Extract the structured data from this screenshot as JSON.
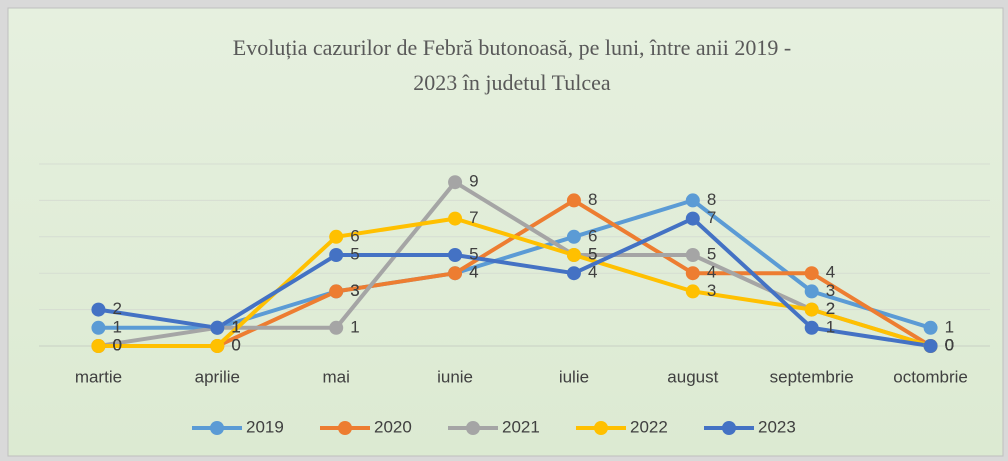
{
  "chart_data": {
    "type": "line",
    "title": [
      "Evoluția cazurilor de Febră butonoasă, pe luni,  între anii 2019 -",
      "2023  în judetul Tulcea"
    ],
    "categories": [
      "martie",
      "aprilie",
      "mai",
      "iunie",
      "iulie",
      "august",
      "septembrie",
      "octombrie"
    ],
    "series": [
      {
        "name": "2019",
        "color": "#5B9BD5",
        "values": [
          1,
          1,
          3,
          4,
          6,
          8,
          3,
          1
        ]
      },
      {
        "name": "2020",
        "color": "#ED7D31",
        "values": [
          0,
          0,
          3,
          4,
          8,
          4,
          4,
          0
        ]
      },
      {
        "name": "2021",
        "color": "#A5A5A5",
        "values": [
          0,
          1,
          1,
          9,
          5,
          5,
          2,
          0
        ]
      },
      {
        "name": "2022",
        "color": "#FFC000",
        "values": [
          0,
          0,
          6,
          7,
          5,
          3,
          2,
          0
        ]
      },
      {
        "name": "2023",
        "color": "#4472C4",
        "values": [
          2,
          1,
          5,
          5,
          4,
          7,
          1,
          0
        ]
      }
    ],
    "ylim": [
      0,
      10
    ],
    "yticks": [
      0,
      2,
      4,
      6,
      8,
      10
    ],
    "grid": true,
    "legend": "bottom",
    "data_labels": true
  }
}
